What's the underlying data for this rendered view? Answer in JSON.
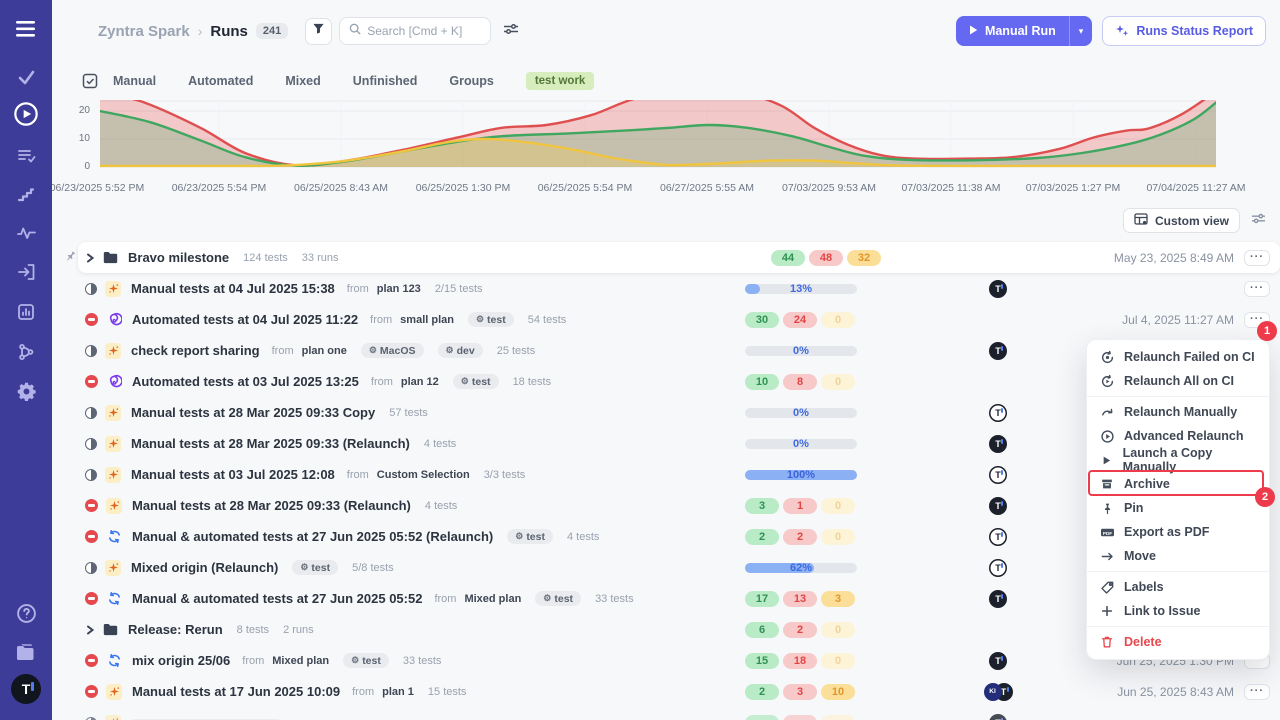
{
  "colors": {
    "brand": "#6569f1",
    "sidebar": "#3e3c99",
    "annotation": "#ee3b4b",
    "badge_green": "#b8ebc6",
    "badge_red": "#f8c9c9",
    "badge_yellow": "#fbdf98",
    "progress_blue": "#8cb0f4"
  },
  "sidebar": {
    "top_icons": [
      "menu",
      "check",
      "runs-play",
      "list-check",
      "steps",
      "activity",
      "import",
      "report",
      "branch",
      "settings"
    ],
    "bottom_icons": [
      "help",
      "docs",
      "logo"
    ],
    "logo_letter": "T"
  },
  "header": {
    "project": "Zyntra Spark",
    "crumb_sep": "›",
    "page": "Runs",
    "count": "241",
    "search_placeholder": "Search [Cmd + K]",
    "manual_run": "Manual Run",
    "manual_run_caret": "▾",
    "runs_status_report": "Runs Status Report"
  },
  "tabs": {
    "items": [
      "Manual",
      "Automated",
      "Mixed",
      "Unfinished",
      "Groups"
    ],
    "tag": "test work"
  },
  "strings": {
    "from": "from",
    "dots": "···"
  },
  "toolbar": {
    "custom_view": "Custom view"
  },
  "chart_data": {
    "type": "area",
    "x_ticks": [
      "06/23/2025 5:52 PM",
      "06/23/2025 5:54 PM",
      "06/25/2025 8:43 AM",
      "06/25/2025 1:30 PM",
      "06/25/2025 5:54 PM",
      "06/27/2025 5:55 AM",
      "07/03/2025 9:53 AM",
      "07/03/2025 11:38 AM",
      "07/03/2025 1:27 PM",
      "07/04/2025 11:27 AM"
    ],
    "y_ticks": [
      0,
      10,
      20
    ],
    "ylim": [
      0,
      24
    ],
    "grid": true,
    "legend": "none",
    "series": [
      {
        "name": "red",
        "color": "#e04f4f",
        "fill": "rgba(231,76,76,0.28)",
        "points": [
          [
            0,
            27
          ],
          [
            0.04,
            23
          ],
          [
            0.09,
            14
          ],
          [
            0.13,
            5
          ],
          [
            0.175,
            0.6
          ],
          [
            0.22,
            2.2
          ],
          [
            0.27,
            6
          ],
          [
            0.32,
            10.5
          ],
          [
            0.36,
            14
          ],
          [
            0.4,
            15
          ],
          [
            0.44,
            18.5
          ],
          [
            0.48,
            24.5
          ],
          [
            0.53,
            28
          ],
          [
            0.57,
            27
          ],
          [
            0.61,
            22
          ],
          [
            0.64,
            14
          ],
          [
            0.67,
            8
          ],
          [
            0.7,
            4.2
          ],
          [
            0.73,
            3
          ],
          [
            0.78,
            3
          ],
          [
            0.82,
            3.6
          ],
          [
            0.86,
            6.5
          ],
          [
            0.89,
            10.5
          ],
          [
            0.92,
            13
          ],
          [
            0.94,
            13.8
          ],
          [
            0.97,
            19
          ],
          [
            1,
            27
          ]
        ]
      },
      {
        "name": "green",
        "color": "#3fa75f",
        "fill": "rgba(63,167,95,0.25)",
        "points": [
          [
            0,
            20
          ],
          [
            0.045,
            16
          ],
          [
            0.09,
            9.5
          ],
          [
            0.13,
            3.5
          ],
          [
            0.175,
            0.5
          ],
          [
            0.22,
            2
          ],
          [
            0.27,
            5.5
          ],
          [
            0.32,
            9
          ],
          [
            0.36,
            11
          ],
          [
            0.42,
            12
          ],
          [
            0.47,
            13
          ],
          [
            0.51,
            14
          ],
          [
            0.545,
            15
          ],
          [
            0.58,
            14
          ],
          [
            0.62,
            11
          ],
          [
            0.655,
            7
          ],
          [
            0.685,
            4
          ],
          [
            0.72,
            2.6
          ],
          [
            0.78,
            2.4
          ],
          [
            0.84,
            3.2
          ],
          [
            0.88,
            5
          ],
          [
            0.92,
            8
          ],
          [
            0.95,
            11.5
          ],
          [
            0.98,
            17
          ],
          [
            1,
            23
          ]
        ]
      },
      {
        "name": "yellow",
        "color": "#f0c43e",
        "fill": "rgba(242,201,76,0.30)",
        "points": [
          [
            0,
            0.4
          ],
          [
            0.12,
            0.4
          ],
          [
            0.17,
            0.6
          ],
          [
            0.22,
            2.2
          ],
          [
            0.27,
            5.5
          ],
          [
            0.31,
            8.8
          ],
          [
            0.34,
            10
          ],
          [
            0.37,
            9.4
          ],
          [
            0.42,
            6.5
          ],
          [
            0.46,
            3.2
          ],
          [
            0.5,
            1
          ],
          [
            0.52,
            0.7
          ],
          [
            0.56,
            1.4
          ],
          [
            0.6,
            2.3
          ],
          [
            0.64,
            2.3
          ],
          [
            0.68,
            1.2
          ],
          [
            0.72,
            0.5
          ],
          [
            0.8,
            0.4
          ],
          [
            1,
            0.4
          ]
        ]
      }
    ]
  },
  "rows": [
    {
      "kind": "group",
      "pinned": true,
      "highlight": true,
      "title": "Bravo milestone",
      "tests": "124 tests",
      "runs": "33 runs",
      "result": {
        "type": "badges",
        "green": "44",
        "red": "48",
        "yellow": "32",
        "faded": false
      },
      "date": "May 23, 2025 8:49 AM"
    },
    {
      "kind": "run",
      "status": "progress",
      "type": "manual",
      "title": "Manual tests at 04 Jul 2025 15:38",
      "from": "plan 123",
      "tags": [],
      "tests": "2/15 tests",
      "result": {
        "type": "progress",
        "pct": 13,
        "label": "13%"
      },
      "avatars": [
        "T"
      ],
      "date": ""
    },
    {
      "kind": "run",
      "status": "stopped",
      "type": "automated",
      "title": "Automated tests at 04 Jul 2025 11:22",
      "from": "small plan",
      "tags": [
        "test"
      ],
      "tests": "54 tests",
      "result": {
        "type": "badges",
        "green": "30",
        "red": "24",
        "yellow": "0",
        "faded": true
      },
      "avatars": [],
      "date": "Jul 4, 2025 11:27 AM"
    },
    {
      "kind": "run",
      "status": "progress",
      "type": "manual",
      "title": "check report sharing",
      "from": "plan one",
      "tags": [
        "MacOS",
        "dev"
      ],
      "tests": "25 tests",
      "result": {
        "type": "progress",
        "pct": 0,
        "label": "0%"
      },
      "avatars": [
        "T"
      ],
      "date": ""
    },
    {
      "kind": "run",
      "status": "stopped",
      "type": "automated",
      "title": "Automated tests at 03 Jul 2025 13:25",
      "from": "plan 12",
      "tags": [
        "test"
      ],
      "tests": "18 tests",
      "result": {
        "type": "badges",
        "green": "10",
        "red": "8",
        "yellow": "0",
        "faded": true
      },
      "avatars": [],
      "date": ""
    },
    {
      "kind": "run",
      "status": "progress",
      "type": "manual",
      "title": "Manual tests at 28 Mar 2025 09:33 Copy",
      "from": "",
      "tags": [],
      "tests": "57 tests",
      "result": {
        "type": "progress",
        "pct": 0,
        "label": "0%"
      },
      "avatars": [
        "To"
      ],
      "date": ""
    },
    {
      "kind": "run",
      "status": "progress",
      "type": "manual",
      "title": "Manual tests at 28 Mar 2025 09:33 (Relaunch)",
      "from": "",
      "tags": [],
      "tests": "4 tests",
      "result": {
        "type": "progress",
        "pct": 0,
        "label": "0%"
      },
      "avatars": [
        "T"
      ],
      "date": ""
    },
    {
      "kind": "run",
      "status": "progress",
      "type": "manual",
      "title": "Manual tests at 03 Jul 2025 12:08",
      "from": "Custom Selection",
      "tags": [],
      "tests": "3/3 tests",
      "result": {
        "type": "progress",
        "pct": 100,
        "label": "100%"
      },
      "avatars": [
        "To"
      ],
      "date": ""
    },
    {
      "kind": "run",
      "status": "stopped",
      "type": "manual",
      "title": "Manual tests at 28 Mar 2025 09:33 (Relaunch)",
      "from": "",
      "tags": [],
      "tests": "4 tests",
      "result": {
        "type": "badges",
        "green": "3",
        "red": "1",
        "yellow": "0",
        "faded": true
      },
      "avatars": [
        "T"
      ],
      "date": ""
    },
    {
      "kind": "run",
      "status": "stopped",
      "type": "mixed",
      "title": "Manual & automated tests at 27 Jun 2025 05:52 (Relaunch)",
      "from": "",
      "tags": [
        "test"
      ],
      "tests": "4 tests",
      "result": {
        "type": "badges",
        "green": "2",
        "red": "2",
        "yellow": "0",
        "faded": true
      },
      "avatars": [
        "To"
      ],
      "date": ""
    },
    {
      "kind": "run",
      "status": "progress",
      "type": "manual",
      "title": "Mixed origin (Relaunch)",
      "from": "",
      "tags": [
        "test"
      ],
      "tests": "5/8 tests",
      "result": {
        "type": "progress",
        "pct": 62,
        "label": "62%"
      },
      "avatars": [
        "To"
      ],
      "date": ""
    },
    {
      "kind": "run",
      "status": "stopped",
      "type": "mixed",
      "title": "Manual & automated tests at 27 Jun 2025 05:52",
      "from": "Mixed plan",
      "tags": [
        "test"
      ],
      "tests": "33 tests",
      "result": {
        "type": "badges",
        "green": "17",
        "red": "13",
        "yellow": "3",
        "faded": false
      },
      "avatars": [
        "T"
      ],
      "date": ""
    },
    {
      "kind": "group",
      "pinned": false,
      "highlight": false,
      "title": "Release: Rerun",
      "tests": "8 tests",
      "runs": "2 runs",
      "result": {
        "type": "badges",
        "green": "6",
        "red": "2",
        "yellow": "0",
        "faded": true
      },
      "date": ""
    },
    {
      "kind": "run",
      "status": "stopped",
      "type": "mixed",
      "title": "mix origin 25/06",
      "from": "Mixed plan",
      "tags": [
        "test"
      ],
      "tests": "33 tests",
      "result": {
        "type": "badges",
        "green": "15",
        "red": "18",
        "yellow": "0",
        "faded": true
      },
      "avatars": [
        "T"
      ],
      "date": "Jun 25, 2025 1:30 PM"
    },
    {
      "kind": "run",
      "status": "stopped",
      "type": "manual",
      "title": "Manual tests at 17 Jun 2025 10:09",
      "from": "plan 1",
      "tags": [],
      "tests": "15 tests",
      "result": {
        "type": "badges",
        "green": "2",
        "red": "3",
        "yellow": "10",
        "faded": false
      },
      "avatars": [
        "KI",
        "T"
      ],
      "date": "Jun 25, 2025 8:43 AM"
    },
    {
      "kind": "partial"
    }
  ],
  "menu": {
    "items": [
      {
        "label": "Relaunch Failed on CI",
        "icon": "relaunch-failed"
      },
      {
        "label": "Relaunch All on CI",
        "icon": "relaunch-all"
      },
      {
        "divider": true
      },
      {
        "label": "Relaunch Manually",
        "icon": "relaunch-manual"
      },
      {
        "label": "Advanced Relaunch",
        "icon": "advanced-relaunch"
      },
      {
        "label": "Launch a Copy Manually",
        "icon": "launch-copy"
      },
      {
        "label": "Archive",
        "icon": "archive",
        "outlined": true
      },
      {
        "label": "Pin",
        "icon": "pin"
      },
      {
        "label": "Export as PDF",
        "icon": "pdf"
      },
      {
        "label": "Move",
        "icon": "move"
      },
      {
        "divider": true
      },
      {
        "label": "Labels",
        "icon": "labels"
      },
      {
        "label": "Link to Issue",
        "icon": "link"
      },
      {
        "divider": true
      },
      {
        "label": "Delete",
        "icon": "delete",
        "danger": true
      }
    ]
  },
  "annotations": {
    "step_1": "1",
    "step_2": "2"
  }
}
